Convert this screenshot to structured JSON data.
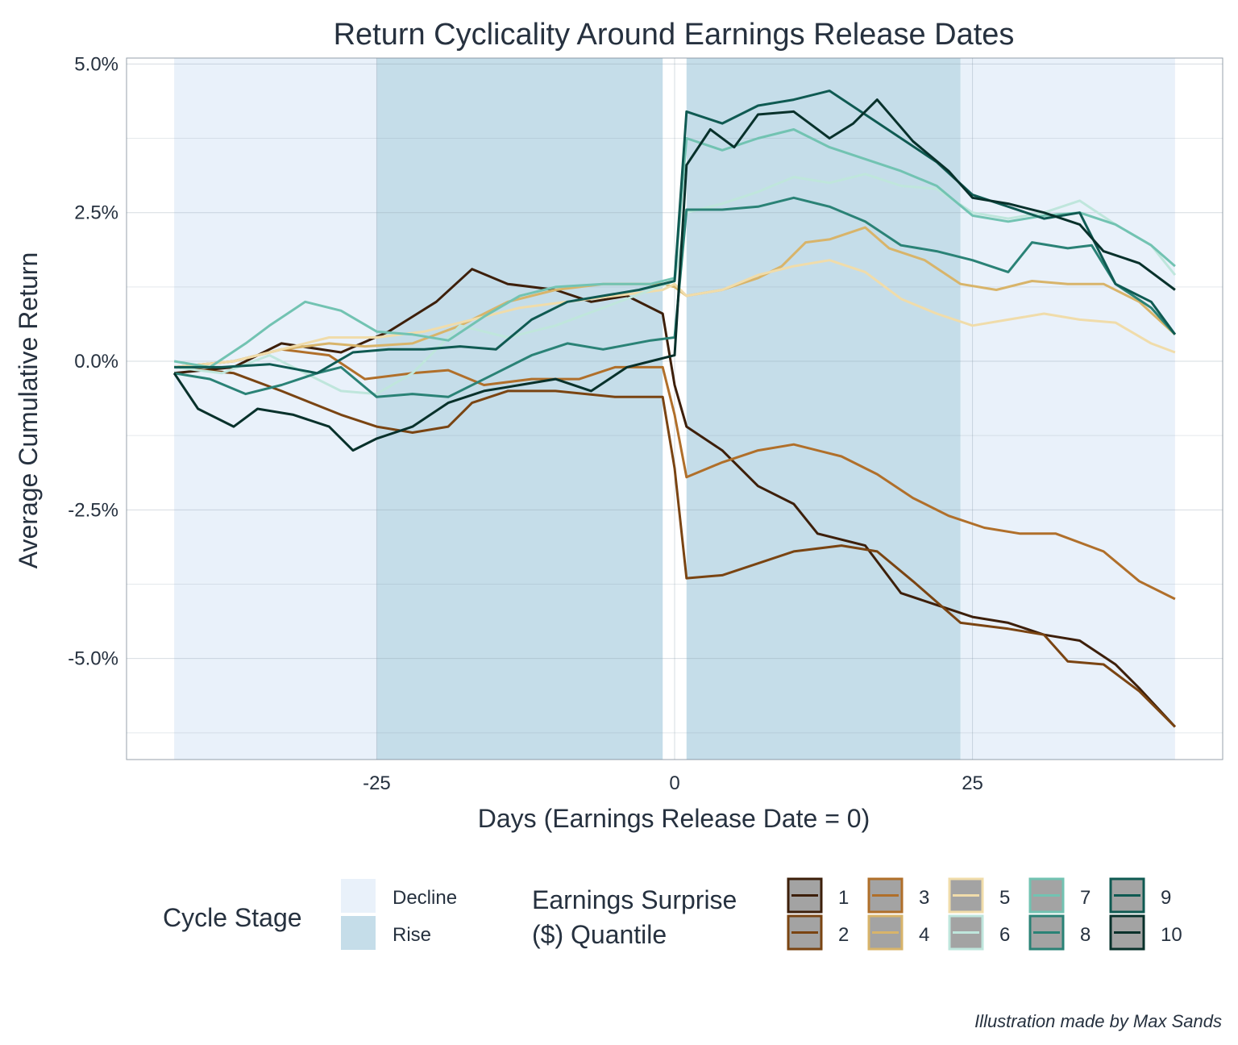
{
  "chart_data": {
    "type": "line",
    "title": "Return Cyclicality Around Earnings Release Dates",
    "xlabel": "Days (Earnings Release Date = 0)",
    "ylabel": "Average Cumulative Return",
    "xlim": [
      -46,
      46
    ],
    "ylim": [
      -6.7,
      5.1
    ],
    "x_ticks": [
      -25,
      0,
      25
    ],
    "x_tick_labels": [
      "-25",
      "0",
      "25"
    ],
    "y_ticks": [
      5.0,
      2.5,
      0.0,
      -2.5,
      -5.0
    ],
    "y_tick_labels": [
      "5.0%",
      "2.5%",
      "0.0%",
      "-2.5%",
      "-5.0%"
    ],
    "grid": true,
    "legend_position": "bottom",
    "caption": "Illustration made by Max Sands",
    "cycle_stage": {
      "title": "Cycle Stage",
      "items": [
        {
          "label": "Decline",
          "color": "#e9f1fa"
        },
        {
          "label": "Rise",
          "color": "#c5dde9"
        }
      ],
      "regions": [
        {
          "stage": "Decline",
          "x0": -42,
          "x1": -25
        },
        {
          "stage": "Rise",
          "x0": -25,
          "x1": -1
        },
        {
          "stage": "Rise",
          "x0": 1,
          "x1": 24
        },
        {
          "stage": "Decline",
          "x0": 24,
          "x1": 42
        }
      ]
    },
    "legend_title_lines": [
      "Earnings Surprise",
      "($) Quantile"
    ],
    "series": [
      {
        "name": "1",
        "color": "#3d1f0a",
        "points": [
          [
            -42,
            -0.2
          ],
          [
            -37,
            -0.1
          ],
          [
            -33,
            0.3
          ],
          [
            -28,
            0.15
          ],
          [
            -24,
            0.5
          ],
          [
            -20,
            1.0
          ],
          [
            -17,
            1.55
          ],
          [
            -14,
            1.3
          ],
          [
            -10,
            1.2
          ],
          [
            -7,
            1.0
          ],
          [
            -4,
            1.1
          ],
          [
            -1,
            0.8
          ],
          [
            0,
            -0.4
          ],
          [
            1,
            -1.1
          ],
          [
            4,
            -1.5
          ],
          [
            7,
            -2.1
          ],
          [
            10,
            -2.4
          ],
          [
            12,
            -2.9
          ],
          [
            16,
            -3.1
          ],
          [
            19,
            -3.9
          ],
          [
            22,
            -4.1
          ],
          [
            25,
            -4.3
          ],
          [
            28,
            -4.4
          ],
          [
            31,
            -4.6
          ],
          [
            34,
            -4.7
          ],
          [
            37,
            -5.1
          ],
          [
            39,
            -5.5
          ],
          [
            42,
            -6.15
          ]
        ]
      },
      {
        "name": "2",
        "color": "#7a4412",
        "points": [
          [
            -42,
            -0.1
          ],
          [
            -37,
            -0.2
          ],
          [
            -33,
            -0.5
          ],
          [
            -28,
            -0.9
          ],
          [
            -25,
            -1.1
          ],
          [
            -22,
            -1.2
          ],
          [
            -19,
            -1.1
          ],
          [
            -17,
            -0.7
          ],
          [
            -14,
            -0.5
          ],
          [
            -10,
            -0.5
          ],
          [
            -5,
            -0.6
          ],
          [
            -1,
            -0.6
          ],
          [
            0,
            -1.8
          ],
          [
            1,
            -3.65
          ],
          [
            4,
            -3.6
          ],
          [
            7,
            -3.4
          ],
          [
            10,
            -3.2
          ],
          [
            14,
            -3.1
          ],
          [
            17,
            -3.2
          ],
          [
            20,
            -3.7
          ],
          [
            24,
            -4.4
          ],
          [
            28,
            -4.5
          ],
          [
            31,
            -4.6
          ],
          [
            33,
            -5.05
          ],
          [
            36,
            -5.1
          ],
          [
            39,
            -5.55
          ],
          [
            42,
            -6.15
          ]
        ]
      },
      {
        "name": "3",
        "color": "#b06f2a",
        "points": [
          [
            -42,
            -0.1
          ],
          [
            -37,
            0.0
          ],
          [
            -33,
            0.2
          ],
          [
            -29,
            0.1
          ],
          [
            -26,
            -0.3
          ],
          [
            -22,
            -0.2
          ],
          [
            -19,
            -0.15
          ],
          [
            -16,
            -0.4
          ],
          [
            -12,
            -0.3
          ],
          [
            -8,
            -0.3
          ],
          [
            -5,
            -0.1
          ],
          [
            -1,
            -0.1
          ],
          [
            0,
            -0.9
          ],
          [
            1,
            -1.95
          ],
          [
            4,
            -1.7
          ],
          [
            7,
            -1.5
          ],
          [
            10,
            -1.4
          ],
          [
            14,
            -1.6
          ],
          [
            17,
            -1.9
          ],
          [
            20,
            -2.3
          ],
          [
            23,
            -2.6
          ],
          [
            26,
            -2.8
          ],
          [
            29,
            -2.9
          ],
          [
            32,
            -2.9
          ],
          [
            36,
            -3.2
          ],
          [
            39,
            -3.7
          ],
          [
            42,
            -4.0
          ]
        ]
      },
      {
        "name": "4",
        "color": "#d8b46a",
        "points": [
          [
            -42,
            -0.1
          ],
          [
            -37,
            0.0
          ],
          [
            -33,
            0.2
          ],
          [
            -29,
            0.3
          ],
          [
            -26,
            0.25
          ],
          [
            -22,
            0.3
          ],
          [
            -18,
            0.6
          ],
          [
            -14,
            1.0
          ],
          [
            -10,
            1.2
          ],
          [
            -6,
            1.3
          ],
          [
            -1,
            1.3
          ],
          [
            0,
            1.25
          ],
          [
            1,
            1.1
          ],
          [
            4,
            1.2
          ],
          [
            7,
            1.4
          ],
          [
            9,
            1.6
          ],
          [
            11,
            2.0
          ],
          [
            13,
            2.05
          ],
          [
            16,
            2.25
          ],
          [
            18,
            1.9
          ],
          [
            21,
            1.7
          ],
          [
            24,
            1.3
          ],
          [
            27,
            1.2
          ],
          [
            30,
            1.35
          ],
          [
            33,
            1.3
          ],
          [
            36,
            1.3
          ],
          [
            39,
            1.0
          ],
          [
            42,
            0.45
          ]
        ]
      },
      {
        "name": "5",
        "color": "#f0dcaa",
        "points": [
          [
            -42,
            -0.1
          ],
          [
            -37,
            0.0
          ],
          [
            -33,
            0.2
          ],
          [
            -29,
            0.4
          ],
          [
            -25,
            0.4
          ],
          [
            -21,
            0.5
          ],
          [
            -17,
            0.7
          ],
          [
            -13,
            0.9
          ],
          [
            -9,
            1.0
          ],
          [
            -5,
            1.1
          ],
          [
            -1,
            1.2
          ],
          [
            0,
            1.3
          ],
          [
            1,
            1.1
          ],
          [
            4,
            1.2
          ],
          [
            7,
            1.45
          ],
          [
            10,
            1.6
          ],
          [
            13,
            1.7
          ],
          [
            16,
            1.5
          ],
          [
            19,
            1.05
          ],
          [
            22,
            0.8
          ],
          [
            25,
            0.6
          ],
          [
            28,
            0.7
          ],
          [
            31,
            0.8
          ],
          [
            34,
            0.7
          ],
          [
            37,
            0.65
          ],
          [
            40,
            0.3
          ],
          [
            42,
            0.15
          ]
        ]
      },
      {
        "name": "6",
        "color": "#bfe6dc",
        "points": [
          [
            -42,
            -0.1
          ],
          [
            -38,
            -0.2
          ],
          [
            -34,
            0.1
          ],
          [
            -31,
            -0.2
          ],
          [
            -28,
            -0.5
          ],
          [
            -25,
            -0.55
          ],
          [
            -22,
            -0.2
          ],
          [
            -18,
            0.6
          ],
          [
            -14,
            0.4
          ],
          [
            -10,
            0.6
          ],
          [
            -6,
            0.9
          ],
          [
            -2,
            1.2
          ],
          [
            0,
            1.35
          ],
          [
            1,
            2.5
          ],
          [
            4,
            2.65
          ],
          [
            7,
            2.85
          ],
          [
            10,
            3.1
          ],
          [
            13,
            3.0
          ],
          [
            16,
            3.15
          ],
          [
            19,
            2.95
          ],
          [
            22,
            2.9
          ],
          [
            25,
            2.5
          ],
          [
            28,
            2.4
          ],
          [
            31,
            2.5
          ],
          [
            34,
            2.7
          ],
          [
            37,
            2.3
          ],
          [
            40,
            1.95
          ],
          [
            42,
            1.45
          ]
        ]
      },
      {
        "name": "7",
        "color": "#72c3b2",
        "points": [
          [
            -42,
            0.0
          ],
          [
            -39,
            -0.1
          ],
          [
            -36,
            0.3
          ],
          [
            -34,
            0.6
          ],
          [
            -31,
            1.0
          ],
          [
            -28,
            0.85
          ],
          [
            -25,
            0.5
          ],
          [
            -22,
            0.45
          ],
          [
            -19,
            0.35
          ],
          [
            -16,
            0.75
          ],
          [
            -13,
            1.1
          ],
          [
            -10,
            1.25
          ],
          [
            -6,
            1.3
          ],
          [
            -2,
            1.3
          ],
          [
            0,
            1.4
          ],
          [
            1,
            3.75
          ],
          [
            4,
            3.55
          ],
          [
            7,
            3.75
          ],
          [
            10,
            3.9
          ],
          [
            13,
            3.6
          ],
          [
            16,
            3.4
          ],
          [
            19,
            3.2
          ],
          [
            22,
            2.95
          ],
          [
            25,
            2.45
          ],
          [
            28,
            2.35
          ],
          [
            31,
            2.45
          ],
          [
            34,
            2.5
          ],
          [
            37,
            2.3
          ],
          [
            40,
            1.95
          ],
          [
            42,
            1.6
          ]
        ]
      },
      {
        "name": "8",
        "color": "#2a8276",
        "points": [
          [
            -42,
            -0.2
          ],
          [
            -39,
            -0.3
          ],
          [
            -36,
            -0.55
          ],
          [
            -33,
            -0.4
          ],
          [
            -30,
            -0.2
          ],
          [
            -28,
            -0.1
          ],
          [
            -25,
            -0.6
          ],
          [
            -22,
            -0.55
          ],
          [
            -19,
            -0.6
          ],
          [
            -15,
            -0.2
          ],
          [
            -12,
            0.1
          ],
          [
            -9,
            0.3
          ],
          [
            -6,
            0.2
          ],
          [
            -2,
            0.35
          ],
          [
            0,
            0.4
          ],
          [
            1,
            2.55
          ],
          [
            4,
            2.55
          ],
          [
            7,
            2.6
          ],
          [
            10,
            2.75
          ],
          [
            13,
            2.6
          ],
          [
            16,
            2.35
          ],
          [
            19,
            1.95
          ],
          [
            22,
            1.85
          ],
          [
            25,
            1.7
          ],
          [
            28,
            1.5
          ],
          [
            30,
            2.0
          ],
          [
            33,
            1.9
          ],
          [
            35,
            1.95
          ],
          [
            37,
            1.3
          ],
          [
            40,
            0.9
          ],
          [
            42,
            0.45
          ]
        ]
      },
      {
        "name": "9",
        "color": "#0f5a52",
        "points": [
          [
            -42,
            -0.1
          ],
          [
            -38,
            -0.1
          ],
          [
            -34,
            -0.05
          ],
          [
            -30,
            -0.2
          ],
          [
            -27,
            0.15
          ],
          [
            -24,
            0.2
          ],
          [
            -21,
            0.2
          ],
          [
            -18,
            0.25
          ],
          [
            -15,
            0.2
          ],
          [
            -12,
            0.7
          ],
          [
            -9,
            1.0
          ],
          [
            -6,
            1.1
          ],
          [
            -3,
            1.2
          ],
          [
            0,
            1.35
          ],
          [
            1,
            4.2
          ],
          [
            4,
            4.0
          ],
          [
            7,
            4.3
          ],
          [
            10,
            4.4
          ],
          [
            13,
            4.55
          ],
          [
            16,
            4.15
          ],
          [
            19,
            3.75
          ],
          [
            22,
            3.35
          ],
          [
            25,
            2.8
          ],
          [
            28,
            2.6
          ],
          [
            31,
            2.4
          ],
          [
            34,
            2.5
          ],
          [
            37,
            1.3
          ],
          [
            40,
            1.0
          ],
          [
            42,
            0.45
          ]
        ]
      },
      {
        "name": "10",
        "color": "#08312b",
        "points": [
          [
            -42,
            -0.2
          ],
          [
            -40,
            -0.8
          ],
          [
            -37,
            -1.1
          ],
          [
            -35,
            -0.8
          ],
          [
            -32,
            -0.9
          ],
          [
            -29,
            -1.1
          ],
          [
            -27,
            -1.5
          ],
          [
            -25,
            -1.3
          ],
          [
            -22,
            -1.1
          ],
          [
            -19,
            -0.7
          ],
          [
            -16,
            -0.5
          ],
          [
            -13,
            -0.4
          ],
          [
            -10,
            -0.3
          ],
          [
            -7,
            -0.5
          ],
          [
            -4,
            -0.1
          ],
          [
            -2,
            0.0
          ],
          [
            0,
            0.1
          ],
          [
            1,
            3.3
          ],
          [
            3,
            3.9
          ],
          [
            5,
            3.6
          ],
          [
            7,
            4.15
          ],
          [
            10,
            4.2
          ],
          [
            13,
            3.75
          ],
          [
            15,
            4.0
          ],
          [
            17,
            4.4
          ],
          [
            20,
            3.7
          ],
          [
            23,
            3.2
          ],
          [
            25,
            2.75
          ],
          [
            28,
            2.65
          ],
          [
            31,
            2.5
          ],
          [
            34,
            2.3
          ],
          [
            36,
            1.85
          ],
          [
            39,
            1.65
          ],
          [
            42,
            1.2
          ]
        ]
      }
    ]
  }
}
